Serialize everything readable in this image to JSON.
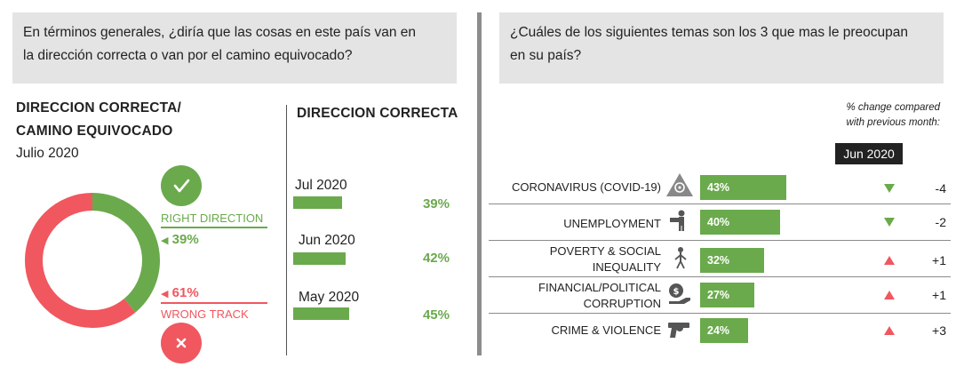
{
  "left_question": {
    "line1": "En términos generales, ¿diría que las cosas en este país van en",
    "line2": "la dirección correcta o van por el camino equivocado?"
  },
  "right_question": {
    "line1": "¿Cuáles de los siguientes temas son los 3 que mas le preocupan",
    "line2": "en su país?"
  },
  "donut_block": {
    "title_line1": "DIRECCION CORRECTA/",
    "title_line2": "CAMINO EQUIVOCADO",
    "date": "Julio 2020",
    "right_label": "RIGHT DIRECTION",
    "right_pct": "39%",
    "wrong_pct": "61%",
    "wrong_label": "WRONG TRACK",
    "check_icon": "check-icon",
    "cross_icon": "close-icon",
    "color_right": "#6aaa4c",
    "color_wrong": "#f0575f"
  },
  "trend_block": {
    "title": "DIRECCION CORRECTA"
  },
  "issues_block": {
    "note_line1": "% change compared",
    "note_line2": "with previous month:",
    "month_badge": "Jun 2020"
  },
  "chart_data": [
    {
      "type": "pie",
      "categories": [
        "RIGHT DIRECTION",
        "WRONG TRACK"
      ],
      "values": [
        39,
        61
      ],
      "title": "DIRECCION CORRECTA/ CAMINO EQUIVOCADO",
      "subtitle": "Julio 2020",
      "colors": [
        "#6aaa4c",
        "#f0575f"
      ]
    },
    {
      "type": "bar",
      "title": "DIRECCION CORRECTA",
      "categories": [
        "Jul 2020",
        "Jun 2020",
        "May 2020"
      ],
      "values": [
        39,
        42,
        45
      ],
      "value_labels": [
        "39%",
        "42%",
        "45%"
      ]
    },
    {
      "type": "bar",
      "orientation": "horizontal",
      "categories_lines": [
        [
          "CORONAVIRUS (COVID-19)"
        ],
        [
          "UNEMPLOYMENT"
        ],
        [
          "POVERTY & SOCIAL",
          "INEQUALITY"
        ],
        [
          "FINANCIAL/POLITICAL",
          "CORRUPTION"
        ],
        [
          "CRIME & VIOLENCE"
        ]
      ],
      "values": [
        43,
        40,
        32,
        27,
        24
      ],
      "value_labels": [
        "43%",
        "40%",
        "32%",
        "27%",
        "24%"
      ],
      "changes": [
        "-4",
        "-2",
        "+1",
        "+1",
        "+3"
      ],
      "change_direction": [
        "down",
        "down",
        "up",
        "up",
        "up"
      ],
      "icons": [
        "biohazard-icon",
        "unemployment-icon",
        "poverty-icon",
        "corruption-icon",
        "gun-icon"
      ]
    }
  ]
}
